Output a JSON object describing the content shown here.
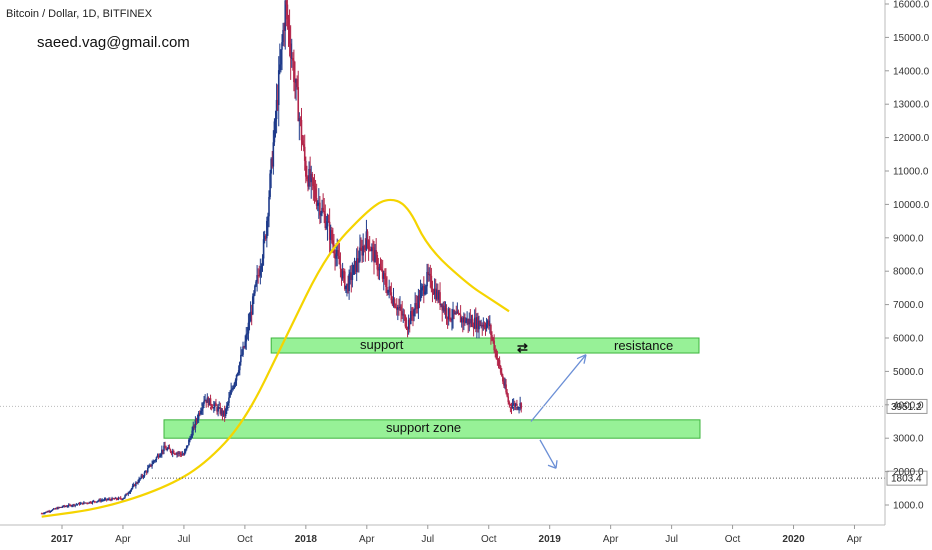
{
  "header": {
    "symbol": "Bitcoin / Dollar, 1D, BITFINEX",
    "author": "saeed.vag@gmail.com"
  },
  "chart_data": {
    "type": "candlestick",
    "price_axis": {
      "ticks": [
        1000,
        2000,
        3000,
        4000,
        5000,
        6000,
        7000,
        8000,
        9000,
        10000,
        11000,
        12000,
        13000,
        14000,
        15000,
        16000
      ],
      "tick_labels": [
        "1000.0",
        "2000.0",
        "3000.0",
        "4000.0",
        "5000.0",
        "6000.0",
        "7000.0",
        "8000.0",
        "9000.0",
        "10000.0",
        "11000.0",
        "12000.0",
        "13000.0",
        "14000.0",
        "15000.0",
        "16000.0"
      ],
      "range": [
        500,
        16200
      ]
    },
    "time_axis": {
      "labels": [
        "2017",
        "Apr",
        "Jul",
        "Oct",
        "2018",
        "Apr",
        "Jul",
        "Oct",
        "2019",
        "Apr",
        "Jul",
        "Oct",
        "2020",
        "Apr"
      ],
      "bold": [
        "2017",
        "2018",
        "2019",
        "2020"
      ],
      "positions": [
        "2017-01",
        "2017-04",
        "2017-07",
        "2017-10",
        "2018-01",
        "2018-04",
        "2018-07",
        "2018-10",
        "2019-01",
        "2019-04",
        "2019-07",
        "2019-10",
        "2020-01",
        "2020-04"
      ]
    },
    "price_path": [
      [
        "2016-12",
        750
      ],
      [
        "2017-01",
        950
      ],
      [
        "2017-02",
        1050
      ],
      [
        "2017-03",
        1150
      ],
      [
        "2017-04",
        1200
      ],
      [
        "2017-05",
        1900
      ],
      [
        "2017-06",
        2700
      ],
      [
        "2017-07",
        2500
      ],
      [
        "2017-08",
        4200
      ],
      [
        "2017-09",
        3700
      ],
      [
        "2017-10",
        5800
      ],
      [
        "2017-11",
        9000
      ],
      [
        "2017-12",
        16000
      ],
      [
        "2018-01",
        11000
      ],
      [
        "2018-02",
        9500
      ],
      [
        "2018-03",
        7500
      ],
      [
        "2018-04",
        9000
      ],
      [
        "2018-05",
        7500
      ],
      [
        "2018-06",
        6400
      ],
      [
        "2018-07",
        7800
      ],
      [
        "2018-08",
        6700
      ],
      [
        "2018-09",
        6500
      ],
      [
        "2018-10",
        6400
      ],
      [
        "2018-11",
        4000
      ]
    ],
    "moving_average": [
      [
        "2016-12",
        650
      ],
      [
        "2017-03",
        900
      ],
      [
        "2017-06",
        1500
      ],
      [
        "2017-08",
        2200
      ],
      [
        "2017-10",
        3500
      ],
      [
        "2017-12",
        6000
      ],
      [
        "2018-02",
        8500
      ],
      [
        "2018-04",
        9800
      ],
      [
        "2018-05",
        10200
      ],
      [
        "2018-06",
        10000
      ],
      [
        "2018-07",
        8700
      ],
      [
        "2018-09",
        7600
      ],
      [
        "2018-10",
        7200
      ],
      [
        "2018-11",
        6800
      ]
    ],
    "zones": [
      {
        "name": "support",
        "label": "support",
        "low": 5550,
        "high": 6000,
        "start": "2017-11",
        "end": "2019-06",
        "color": "#7dee7d"
      },
      {
        "name": "resistance",
        "label": "resistance",
        "low": 5550,
        "high": 6000,
        "start": "2017-11",
        "end": "2019-06",
        "color": "#7dee7d"
      },
      {
        "name": "support-zone",
        "label": "support zone",
        "low": 3000,
        "high": 3550,
        "start": "2017-06",
        "end": "2019-06",
        "color": "#7dee7d"
      }
    ],
    "price_tags": [
      {
        "value": 3951.2,
        "label": "3951.2"
      },
      {
        "value": 1803.4,
        "label": "1803.4"
      }
    ],
    "colors": {
      "up": "#1e3a8a",
      "down": "#b3264a",
      "ma": "#f5d400",
      "arrow": "#6b8fd6",
      "zone_border": "#3cb43c"
    }
  }
}
